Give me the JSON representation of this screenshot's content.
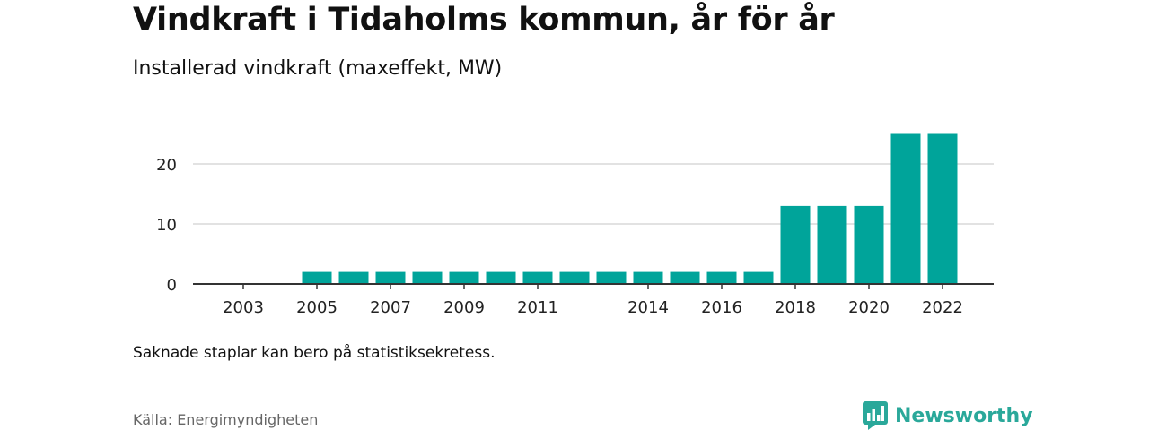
{
  "header": {
    "title": "Vindkraft i Tidaholms kommun, år för år",
    "subtitle": "Installerad vindkraft (maxeffekt, MW)"
  },
  "footer": {
    "note": "Saknade staplar kan bero på statistiksekretess.",
    "source": "Källa: Energimyndigheten",
    "brand": "Newsworthy",
    "brand_icon": "newsworthy-logo-icon"
  },
  "colors": {
    "bar": "#00a49a",
    "grid": "#d9d9d9",
    "axis": "#333333",
    "brand": "#2aa89a"
  },
  "chart_data": {
    "type": "bar",
    "categories": [
      "2003",
      "2004",
      "2005",
      "2006",
      "2007",
      "2008",
      "2009",
      "2010",
      "2011",
      "2012",
      "2013",
      "2014",
      "2015",
      "2016",
      "2017",
      "2018",
      "2019",
      "2020",
      "2021",
      "2022"
    ],
    "values": [
      0,
      null,
      2,
      2,
      2,
      2,
      2,
      2,
      2,
      2,
      2,
      2,
      2,
      2,
      2,
      13,
      13,
      13,
      25,
      25
    ],
    "x_tick_labels": [
      "2003",
      "2005",
      "2007",
      "2009",
      "2011",
      "2014",
      "2016",
      "2018",
      "2020",
      "2022"
    ],
    "y_ticks": [
      0,
      10,
      20
    ],
    "ylim": [
      0,
      26
    ],
    "grid": true,
    "legend": "none"
  }
}
